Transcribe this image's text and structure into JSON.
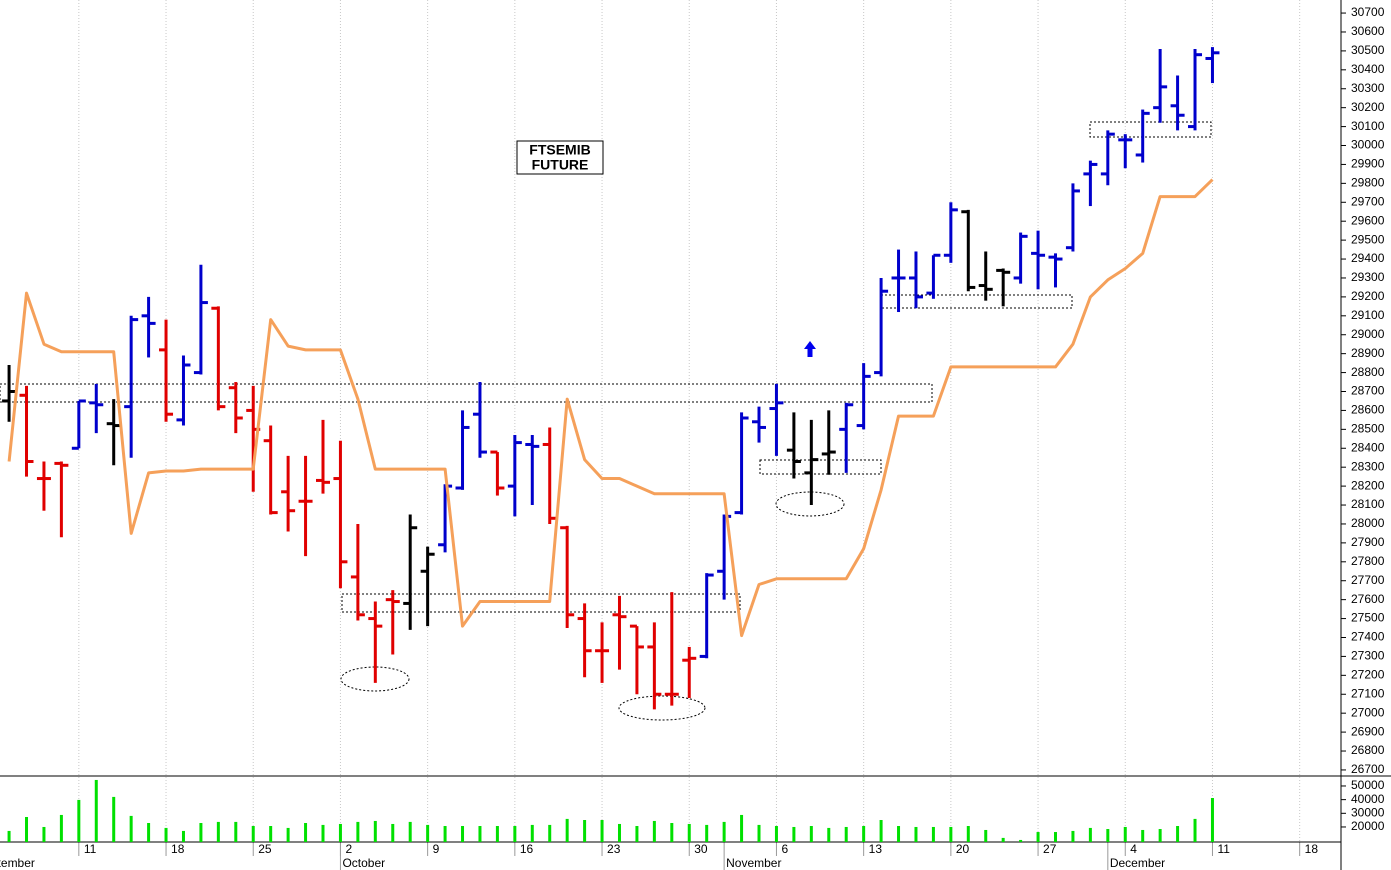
{
  "chart_data": [
    {
      "type": "ohlc",
      "title": "FTSEMIB",
      "subtitle": "FUTURE",
      "x": [
        1,
        2,
        3,
        4,
        5,
        6,
        7,
        8,
        9,
        10,
        11,
        12,
        13,
        14,
        15,
        16,
        17,
        18,
        19,
        20,
        21,
        22,
        23,
        24,
        25,
        26,
        27,
        28,
        29,
        30,
        31,
        32,
        33,
        34,
        35,
        36,
        37,
        38,
        39,
        40,
        41,
        42,
        43,
        44,
        45,
        46,
        47,
        48,
        49,
        50,
        51,
        52,
        53,
        54,
        55,
        56,
        57,
        58,
        59,
        60,
        61,
        62,
        63,
        64,
        65,
        66,
        67,
        68,
        69,
        70
      ],
      "open": [
        28650,
        28680,
        28240,
        28320,
        28400,
        28640,
        28530,
        28620,
        29100,
        28920,
        28550,
        28800,
        29140,
        28720,
        28600,
        28440,
        28170,
        28120,
        28230,
        28240,
        27720,
        27500,
        27600,
        27580,
        27750,
        27890,
        28190,
        28580,
        28380,
        28200,
        28420,
        28420,
        27980,
        27500,
        27330,
        27520,
        27460,
        27350,
        27100,
        27280,
        27300,
        27750,
        28060,
        28540,
        28610,
        28390,
        28270,
        28370,
        28500,
        28520,
        28800,
        29300,
        29300,
        29220,
        29420,
        29650,
        29260,
        29340,
        29300,
        29430,
        29410,
        29460,
        29850,
        29850,
        30030,
        29950,
        30200,
        30210,
        30100,
        30460
      ],
      "high": [
        28840,
        28730,
        28330,
        28330,
        28650,
        28740,
        28660,
        29100,
        29200,
        29080,
        28890,
        29370,
        29150,
        28750,
        28730,
        28520,
        28360,
        28360,
        28550,
        28440,
        28000,
        27590,
        27650,
        28050,
        27880,
        28210,
        28600,
        28750,
        28380,
        28470,
        28470,
        28510,
        27990,
        27580,
        27480,
        27620,
        27460,
        27480,
        27640,
        27350,
        27740,
        28050,
        28590,
        28620,
        28740,
        28590,
        28550,
        28600,
        28640,
        28850,
        29300,
        29450,
        29440,
        29420,
        29700,
        29660,
        29440,
        29350,
        29540,
        29550,
        29430,
        29800,
        29920,
        30080,
        30060,
        30190,
        30510,
        30370,
        30510,
        30520
      ],
      "low": [
        28540,
        28250,
        28070,
        27930,
        28400,
        28480,
        28310,
        28350,
        28880,
        28540,
        28520,
        28790,
        28600,
        28480,
        28170,
        28050,
        27960,
        27830,
        28160,
        27660,
        27490,
        27160,
        27310,
        27440,
        27460,
        27850,
        28180,
        28350,
        28150,
        28040,
        28100,
        28000,
        27450,
        27190,
        27160,
        27230,
        27100,
        27020,
        27040,
        27080,
        27290,
        27600,
        28050,
        28430,
        28360,
        28240,
        28100,
        28260,
        28270,
        28500,
        28780,
        29120,
        29140,
        29190,
        29380,
        29230,
        29180,
        29150,
        29270,
        29240,
        29250,
        29440,
        29680,
        29790,
        29880,
        29910,
        30120,
        30080,
        30080,
        30330
      ],
      "close": [
        28700,
        28330,
        28240,
        28310,
        28650,
        28630,
        28520,
        29080,
        29060,
        28580,
        28840,
        29170,
        28620,
        28560,
        28500,
        28060,
        28070,
        28120,
        28220,
        27800,
        27520,
        27460,
        27590,
        27980,
        27840,
        28200,
        28510,
        28380,
        28190,
        28430,
        28410,
        28030,
        27520,
        27330,
        27330,
        27510,
        27350,
        27100,
        27100,
        27290,
        27730,
        28040,
        28560,
        28510,
        28640,
        28330,
        28340,
        28380,
        28630,
        28780,
        29230,
        29300,
        29200,
        29420,
        29660,
        29250,
        29240,
        29330,
        29520,
        29420,
        29400,
        29760,
        29900,
        30060,
        30030,
        30170,
        30310,
        30160,
        30480,
        30490
      ],
      "colors": [
        "#000000",
        "#e00000",
        "#e00000",
        "#e00000",
        "#0000cc",
        "#0000cc",
        "#000000",
        "#0000cc",
        "#0000cc",
        "#e00000",
        "#0000cc",
        "#0000cc",
        "#e00000",
        "#e00000",
        "#e00000",
        "#e00000",
        "#e00000",
        "#e00000",
        "#e00000",
        "#e00000",
        "#e00000",
        "#e00000",
        "#e00000",
        "#000000",
        "#000000",
        "#0000cc",
        "#0000cc",
        "#0000cc",
        "#e00000",
        "#0000cc",
        "#0000cc",
        "#e00000",
        "#e00000",
        "#e00000",
        "#e00000",
        "#e00000",
        "#e00000",
        "#e00000",
        "#e00000",
        "#e00000",
        "#0000cc",
        "#0000cc",
        "#0000cc",
        "#0000cc",
        "#0000cc",
        "#000000",
        "#000000",
        "#000000",
        "#0000cc",
        "#0000cc",
        "#0000cc",
        "#0000cc",
        "#0000cc",
        "#0000cc",
        "#0000cc",
        "#000000",
        "#000000",
        "#000000",
        "#0000cc",
        "#0000cc",
        "#0000cc",
        "#0000cc",
        "#0000cc",
        "#0000cc",
        "#0000cc",
        "#0000cc",
        "#0000cc",
        "#0000cc",
        "#0000cc",
        "#0000cc"
      ],
      "line": {
        "color": "#f5a05a",
        "values": [
          28330,
          29220,
          28950,
          28910,
          28910,
          28910,
          28910,
          27950,
          28270,
          28280,
          28280,
          28290,
          28290,
          28290,
          28290,
          29080,
          28940,
          28920,
          28920,
          28920,
          28660,
          28290,
          28290,
          28290,
          28290,
          28290,
          27460,
          27590,
          27590,
          27590,
          27590,
          27590,
          28660,
          28340,
          28240,
          28240,
          28200,
          28160,
          28160,
          28160,
          28160,
          28160,
          27410,
          27680,
          27710,
          27710,
          27710,
          27710,
          27710,
          27870,
          28180,
          28570,
          28570,
          28570,
          28830,
          28830,
          28830,
          28830,
          28830,
          28830,
          28830,
          28950,
          29200,
          29290,
          29350,
          29430,
          29730,
          29730,
          29730,
          29820
        ]
      },
      "xlim": [
        0.48,
        77.37
      ],
      "ylim": [
        26668,
        30769
      ],
      "yticks": [
        26700,
        26800,
        26900,
        27000,
        27100,
        27200,
        27300,
        27400,
        27500,
        27600,
        27700,
        27800,
        27900,
        28000,
        28100,
        28200,
        28300,
        28400,
        28500,
        28600,
        28700,
        28800,
        28900,
        29000,
        29100,
        29200,
        29300,
        29400,
        29500,
        29600,
        29700,
        29800,
        29900,
        30000,
        30100,
        30200,
        30300,
        30400,
        30500,
        30600,
        30700
      ]
    },
    {
      "type": "bar",
      "color": "#00e000",
      "x": [
        1,
        2,
        3,
        4,
        5,
        6,
        7,
        8,
        9,
        10,
        11,
        12,
        13,
        14,
        15,
        16,
        17,
        18,
        19,
        20,
        21,
        22,
        23,
        24,
        25,
        26,
        27,
        28,
        29,
        30,
        31,
        32,
        33,
        34,
        35,
        36,
        37,
        38,
        39,
        40,
        41,
        42,
        43,
        44,
        45,
        46,
        47,
        48,
        49,
        50,
        51,
        52,
        53,
        54,
        55,
        56,
        57,
        58,
        59,
        60,
        61,
        62,
        63,
        64,
        65,
        66,
        67,
        68,
        69,
        70
      ],
      "values": [
        17100,
        27300,
        20000,
        28800,
        39800,
        54400,
        42000,
        28100,
        22900,
        19300,
        17100,
        22900,
        23700,
        23700,
        20700,
        20700,
        19300,
        22900,
        21500,
        22200,
        23700,
        24400,
        22200,
        23700,
        21500,
        20700,
        20700,
        20700,
        20700,
        20700,
        21500,
        21500,
        25900,
        25100,
        25100,
        22200,
        20700,
        24400,
        22900,
        22200,
        21500,
        23700,
        28800,
        21500,
        20700,
        20000,
        20700,
        19300,
        20000,
        20700,
        25100,
        20700,
        20000,
        20000,
        20000,
        20700,
        17800,
        12000,
        10500,
        16300,
        16300,
        17100,
        19300,
        18500,
        20000,
        17800,
        18500,
        20700,
        25900,
        41200
      ],
      "xlim": [
        0.48,
        77.37
      ],
      "ylim": [
        9000,
        57300
      ],
      "yticks": [
        20000,
        30000,
        40000,
        50000
      ],
      "xticks": [
        {
          "value": 5,
          "label": "11"
        },
        {
          "value": 10,
          "label": "18"
        },
        {
          "value": 15,
          "label": "25"
        },
        {
          "value": 20,
          "label": "2"
        },
        {
          "value": 25,
          "label": "9"
        },
        {
          "value": 30,
          "label": "16"
        },
        {
          "value": 35,
          "label": "23"
        },
        {
          "value": 40,
          "label": "30"
        },
        {
          "value": 45,
          "label": "6"
        },
        {
          "value": 50,
          "label": "13"
        },
        {
          "value": 55,
          "label": "20"
        },
        {
          "value": 60,
          "label": "27"
        },
        {
          "value": 65,
          "label": "4"
        },
        {
          "value": 70,
          "label": "11"
        },
        {
          "value": 75,
          "label": "18"
        }
      ],
      "month_ticks": [
        {
          "value": -1,
          "label": "September"
        },
        {
          "value": 20,
          "label": "October"
        },
        {
          "value": 42,
          "label": "November"
        },
        {
          "value": 64,
          "label": "December"
        }
      ]
    }
  ]
}
